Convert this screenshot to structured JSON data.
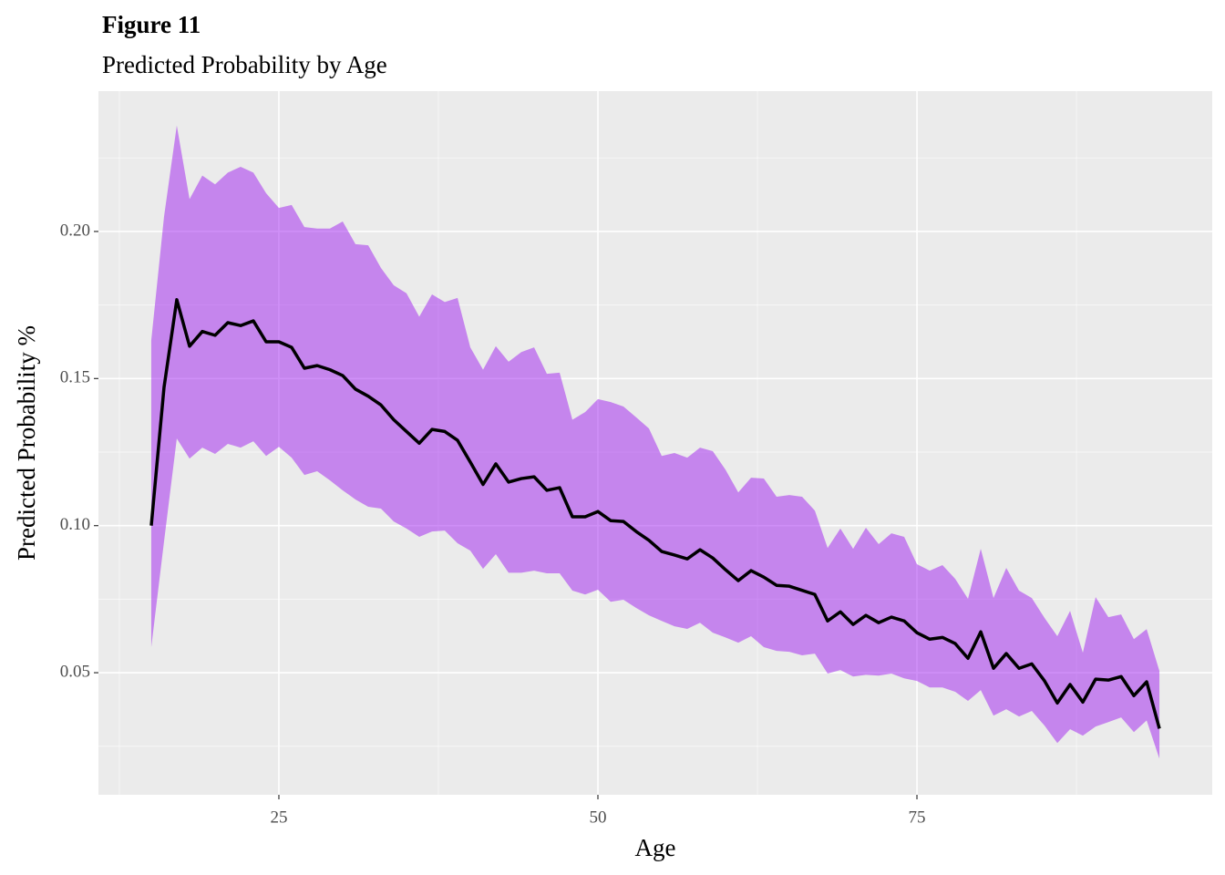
{
  "chart_data": {
    "type": "line",
    "title": "Figure 11",
    "subtitle": "Predicted Probability by Age",
    "x_label": "Age",
    "y_label": "Predicted Probability %",
    "xlim": [
      10.86,
      98.14
    ],
    "ylim": [
      0.0085,
      0.2477
    ],
    "xticks": [
      25,
      50,
      75
    ],
    "yticks": [
      {
        "value": 0.05,
        "label": "0.05"
      },
      {
        "value": 0.1,
        "label": "0.10"
      },
      {
        "value": 0.15,
        "label": "0.15"
      },
      {
        "value": 0.2,
        "label": "0.20"
      }
    ],
    "xminor": [
      12.5,
      37.5,
      62.5,
      87.5
    ],
    "yminor": [
      0.025,
      0.075,
      0.125,
      0.175,
      0.225
    ],
    "grid": true,
    "line_color": "#000000",
    "band_color": "#a020f0",
    "band_opacity": 0.5,
    "x": [
      15,
      16,
      17,
      18,
      19,
      20,
      21,
      22,
      23,
      24,
      25,
      26,
      27,
      28,
      29,
      30,
      31,
      32,
      33,
      34,
      35,
      36,
      37,
      38,
      39,
      40,
      41,
      42,
      43,
      44,
      45,
      46,
      47,
      48,
      49,
      50,
      51,
      52,
      53,
      54,
      55,
      56,
      57,
      58,
      59,
      60,
      61,
      62,
      63,
      64,
      65,
      66,
      67,
      68,
      69,
      70,
      71,
      72,
      73,
      74,
      75,
      76,
      77,
      78,
      79,
      80,
      81,
      82,
      83,
      84,
      85,
      86,
      87,
      88,
      89,
      90,
      91,
      92,
      93,
      94
    ],
    "values": [
      0.1,
      0.147,
      0.1768,
      0.161,
      0.166,
      0.1647,
      0.169,
      0.168,
      0.1696,
      0.1625,
      0.1625,
      0.1606,
      0.1535,
      0.1544,
      0.153,
      0.151,
      0.1464,
      0.144,
      0.141,
      0.136,
      0.132,
      0.128,
      0.1327,
      0.132,
      0.129,
      0.1216,
      0.114,
      0.121,
      0.1148,
      0.116,
      0.1166,
      0.112,
      0.1129,
      0.103,
      0.103,
      0.1048,
      0.1017,
      0.1014,
      0.098,
      0.095,
      0.0912,
      0.09,
      0.0887,
      0.0918,
      0.089,
      0.085,
      0.0813,
      0.0847,
      0.0825,
      0.0797,
      0.0794,
      0.078,
      0.0766,
      0.0676,
      0.0707,
      0.0664,
      0.0695,
      0.067,
      0.0689,
      0.0676,
      0.0636,
      0.0614,
      0.062,
      0.0599,
      0.0549,
      0.0639,
      0.0515,
      0.0565,
      0.0515,
      0.053,
      0.0472,
      0.0397,
      0.046,
      0.04,
      0.0478,
      0.0475,
      0.0487,
      0.0422,
      0.0469,
      0.031
    ],
    "upper": [
      0.163,
      0.205,
      0.236,
      0.211,
      0.219,
      0.216,
      0.22,
      0.222,
      0.22,
      0.213,
      0.208,
      0.209,
      0.2015,
      0.201,
      0.201,
      0.2034,
      0.1957,
      0.1953,
      0.1876,
      0.1817,
      0.179,
      0.171,
      0.1786,
      0.176,
      0.1774,
      0.1606,
      0.153,
      0.161,
      0.1557,
      0.159,
      0.1606,
      0.1516,
      0.152,
      0.136,
      0.1386,
      0.143,
      0.142,
      0.1405,
      0.1368,
      0.133,
      0.1237,
      0.1247,
      0.1231,
      0.1265,
      0.1253,
      0.119,
      0.1113,
      0.1163,
      0.116,
      0.1098,
      0.1104,
      0.1098,
      0.1051,
      0.0924,
      0.099,
      0.0921,
      0.0993,
      0.0937,
      0.0974,
      0.0962,
      0.0869,
      0.0847,
      0.0866,
      0.0819,
      0.0751,
      0.0921,
      0.0754,
      0.0856,
      0.0779,
      0.0754,
      0.0686,
      0.0624,
      0.071,
      0.0568,
      0.0757,
      0.0689,
      0.0698,
      0.0614,
      0.0648,
      0.0506
    ],
    "lower": [
      0.0587,
      0.0946,
      0.1296,
      0.1228,
      0.1265,
      0.1244,
      0.1278,
      0.1265,
      0.1287,
      0.1237,
      0.1268,
      0.1231,
      0.1172,
      0.1185,
      0.1154,
      0.112,
      0.1089,
      0.1064,
      0.1058,
      0.1014,
      0.099,
      0.0962,
      0.098,
      0.0983,
      0.094,
      0.0915,
      0.0853,
      0.0903,
      0.084,
      0.084,
      0.0847,
      0.0838,
      0.0838,
      0.0779,
      0.0766,
      0.0782,
      0.0741,
      0.0748,
      0.072,
      0.0695,
      0.0676,
      0.0658,
      0.0649,
      0.067,
      0.0636,
      0.062,
      0.0602,
      0.0624,
      0.0587,
      0.0574,
      0.0571,
      0.0559,
      0.0565,
      0.0497,
      0.0509,
      0.0487,
      0.0493,
      0.049,
      0.0497,
      0.0481,
      0.0472,
      0.045,
      0.045,
      0.0435,
      0.0404,
      0.0441,
      0.0354,
      0.0376,
      0.0351,
      0.037,
      0.032,
      0.0261,
      0.0308,
      0.0286,
      0.0317,
      0.0332,
      0.0348,
      0.0298,
      0.0338,
      0.0208
    ]
  }
}
